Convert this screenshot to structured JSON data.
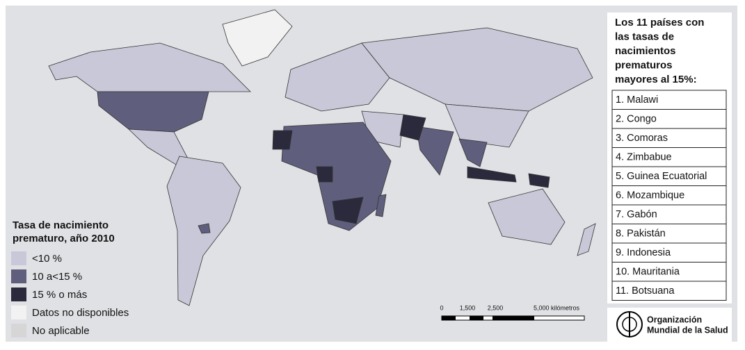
{
  "legend": {
    "title": [
      "Tasa de nacimiento",
      "prematuro, año 2010"
    ],
    "items": [
      {
        "label": "<10 %",
        "color": "#c9c8d8"
      },
      {
        "label": "10 a<15 %",
        "color": "#5f5e7d"
      },
      {
        "label": "15 % o más",
        "color": "#2a2a3c"
      },
      {
        "label": "Datos no disponibles",
        "color": "#f2f2f2"
      },
      {
        "label": "No aplicable",
        "color": "#d6d6d6"
      }
    ]
  },
  "ranking": {
    "title": [
      "Los 11 países con",
      "las tasas de",
      "nacimientos",
      "prematuros",
      "mayores al 15%:"
    ],
    "items": [
      "1. Malawi",
      "2. Congo",
      "3. Comoras",
      "4. Zimbabue",
      "5. Guinea Ecuatorial",
      "6. Mozambique",
      "7. Gabón",
      "8. Pakistán",
      "9. Indonesia",
      "10. Mauritania",
      "11. Botsuana"
    ]
  },
  "scale": {
    "labels": [
      "0",
      "1,500",
      "2,500",
      "5,000 kilómetros"
    ]
  },
  "logo": {
    "lines": [
      "Organización",
      "Mundial de la Salud"
    ]
  }
}
